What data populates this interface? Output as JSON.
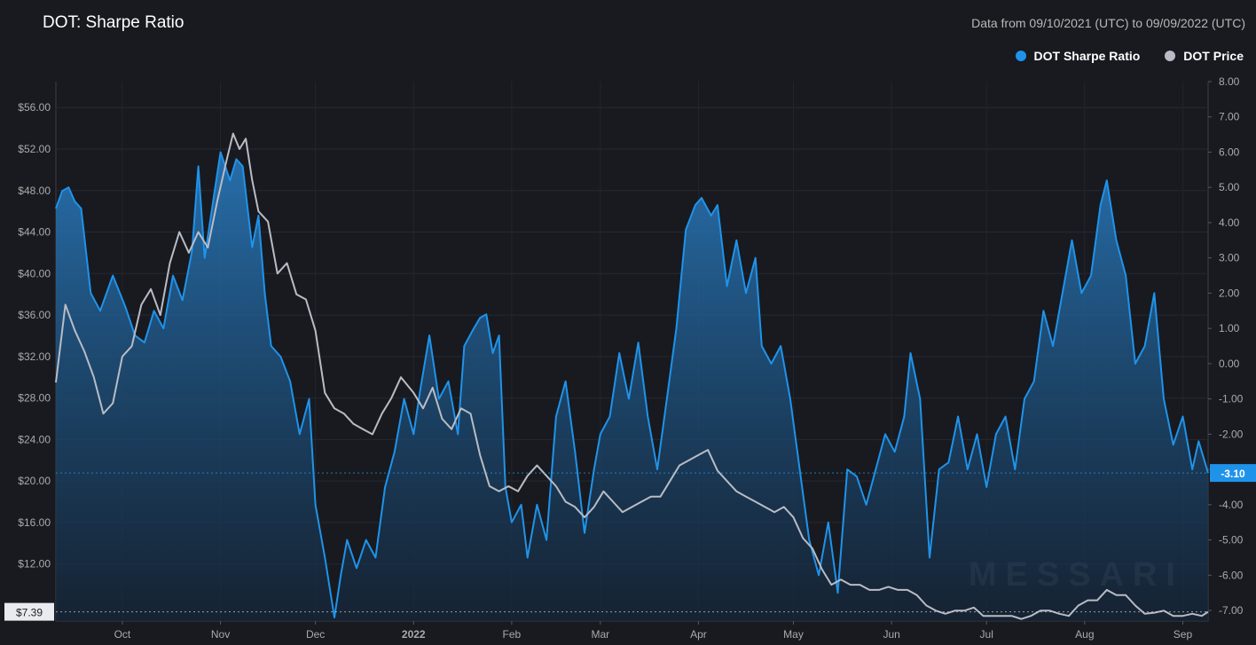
{
  "header": {
    "title": "DOT: Sharpe Ratio",
    "date_range": "Data from 09/10/2021 (UTC) to 09/09/2022 (UTC)"
  },
  "legend": [
    {
      "label": "DOT Sharpe Ratio",
      "color": "#1f93ea"
    },
    {
      "label": "DOT Price",
      "color": "#b9bcc4"
    }
  ],
  "watermark": "MESSARI",
  "markers": {
    "sharpe_last": "-3.10",
    "price_last": "$7.39"
  },
  "chart_data": {
    "type": "line",
    "x_tick_labels": [
      "Oct",
      "Nov",
      "Dec",
      "2022",
      "Feb",
      "Mar",
      "Apr",
      "May",
      "Jun",
      "Jul",
      "Aug",
      "Sep"
    ],
    "y_left": {
      "label": "DOT Price",
      "ticks": [
        "$56.00",
        "$52.00",
        "$48.00",
        "$44.00",
        "$40.00",
        "$36.00",
        "$32.00",
        "$28.00",
        "$24.00",
        "$20.00",
        "$16.00",
        "$12.00"
      ],
      "range": [
        6.5,
        58.5
      ]
    },
    "y_right": {
      "label": "DOT Sharpe Ratio",
      "ticks": [
        "8.00",
        "7.00",
        "6.00",
        "5.00",
        "4.00",
        "3.00",
        "2.00",
        "1.00",
        "0.00",
        "-1.00",
        "-2.00",
        "-3.00",
        "-4.00",
        "-5.00",
        "-6.00",
        "-7.00"
      ],
      "range": [
        -7.3,
        8.0
      ]
    },
    "grid": true,
    "legend_position": "top-right",
    "series": [
      {
        "name": "DOT Sharpe Ratio",
        "color": "#1f93ea",
        "area": true,
        "points": [
          [
            "2021-09-10",
            4.4
          ],
          [
            "2021-09-12",
            4.9
          ],
          [
            "2021-09-14",
            5.0
          ],
          [
            "2021-09-16",
            4.6
          ],
          [
            "2021-09-18",
            4.4
          ],
          [
            "2021-09-21",
            2.0
          ],
          [
            "2021-09-24",
            1.5
          ],
          [
            "2021-09-28",
            2.5
          ],
          [
            "2021-10-02",
            1.6
          ],
          [
            "2021-10-05",
            0.8
          ],
          [
            "2021-10-08",
            0.6
          ],
          [
            "2021-10-11",
            1.5
          ],
          [
            "2021-10-14",
            1.0
          ],
          [
            "2021-10-17",
            2.5
          ],
          [
            "2021-10-20",
            1.8
          ],
          [
            "2021-10-23",
            3.2
          ],
          [
            "2021-10-25",
            5.6
          ],
          [
            "2021-10-27",
            3.0
          ],
          [
            "2021-10-30",
            4.8
          ],
          [
            "2021-11-01",
            6.0
          ],
          [
            "2021-11-04",
            5.2
          ],
          [
            "2021-11-06",
            5.8
          ],
          [
            "2021-11-08",
            5.6
          ],
          [
            "2021-11-11",
            3.3
          ],
          [
            "2021-11-13",
            4.2
          ],
          [
            "2021-11-15",
            2.0
          ],
          [
            "2021-11-17",
            0.5
          ],
          [
            "2021-11-20",
            0.2
          ],
          [
            "2021-11-23",
            -0.5
          ],
          [
            "2021-11-26",
            -2.0
          ],
          [
            "2021-11-29",
            -1.0
          ],
          [
            "2021-12-01",
            -4.0
          ],
          [
            "2021-12-04",
            -5.5
          ],
          [
            "2021-12-07",
            -7.2
          ],
          [
            "2021-12-09",
            -6.0
          ],
          [
            "2021-12-11",
            -5.0
          ],
          [
            "2021-12-14",
            -5.8
          ],
          [
            "2021-12-17",
            -5.0
          ],
          [
            "2021-12-20",
            -5.5
          ],
          [
            "2021-12-23",
            -3.5
          ],
          [
            "2021-12-26",
            -2.5
          ],
          [
            "2021-12-29",
            -1.0
          ],
          [
            "2022-01-01",
            -2.0
          ],
          [
            "2022-01-03",
            -0.8
          ],
          [
            "2022-01-06",
            0.8
          ],
          [
            "2022-01-09",
            -1.0
          ],
          [
            "2022-01-12",
            -0.5
          ],
          [
            "2022-01-15",
            -2.0
          ],
          [
            "2022-01-17",
            0.5
          ],
          [
            "2022-01-20",
            1.0
          ],
          [
            "2022-01-22",
            1.3
          ],
          [
            "2022-01-24",
            1.4
          ],
          [
            "2022-01-26",
            0.3
          ],
          [
            "2022-01-28",
            0.8
          ],
          [
            "2022-01-30",
            -3.5
          ],
          [
            "2022-02-01",
            -4.5
          ],
          [
            "2022-02-04",
            -4.0
          ],
          [
            "2022-02-06",
            -5.5
          ],
          [
            "2022-02-09",
            -4.0
          ],
          [
            "2022-02-12",
            -5.0
          ],
          [
            "2022-02-15",
            -1.5
          ],
          [
            "2022-02-18",
            -0.5
          ],
          [
            "2022-02-21",
            -2.5
          ],
          [
            "2022-02-24",
            -4.8
          ],
          [
            "2022-02-27",
            -3.0
          ],
          [
            "2022-03-01",
            -2.0
          ],
          [
            "2022-03-04",
            -1.5
          ],
          [
            "2022-03-07",
            0.3
          ],
          [
            "2022-03-10",
            -1.0
          ],
          [
            "2022-03-13",
            0.6
          ],
          [
            "2022-03-16",
            -1.5
          ],
          [
            "2022-03-19",
            -3.0
          ],
          [
            "2022-03-22",
            -1.0
          ],
          [
            "2022-03-25",
            1.0
          ],
          [
            "2022-03-28",
            3.8
          ],
          [
            "2022-03-31",
            4.5
          ],
          [
            "2022-04-02",
            4.7
          ],
          [
            "2022-04-05",
            4.2
          ],
          [
            "2022-04-07",
            4.5
          ],
          [
            "2022-04-10",
            2.2
          ],
          [
            "2022-04-13",
            3.5
          ],
          [
            "2022-04-16",
            2.0
          ],
          [
            "2022-04-19",
            3.0
          ],
          [
            "2022-04-21",
            0.5
          ],
          [
            "2022-04-24",
            0.0
          ],
          [
            "2022-04-27",
            0.5
          ],
          [
            "2022-04-30",
            -1.0
          ],
          [
            "2022-05-03",
            -3.0
          ],
          [
            "2022-05-06",
            -5.0
          ],
          [
            "2022-05-09",
            -6.0
          ],
          [
            "2022-05-12",
            -4.5
          ],
          [
            "2022-05-15",
            -6.5
          ],
          [
            "2022-05-18",
            -3.0
          ],
          [
            "2022-05-21",
            -3.2
          ],
          [
            "2022-05-24",
            -4.0
          ],
          [
            "2022-05-27",
            -3.0
          ],
          [
            "2022-05-30",
            -2.0
          ],
          [
            "2022-06-02",
            -2.5
          ],
          [
            "2022-06-05",
            -1.5
          ],
          [
            "2022-06-07",
            0.3
          ],
          [
            "2022-06-10",
            -1.0
          ],
          [
            "2022-06-13",
            -5.5
          ],
          [
            "2022-06-16",
            -3.0
          ],
          [
            "2022-06-19",
            -2.8
          ],
          [
            "2022-06-22",
            -1.5
          ],
          [
            "2022-06-25",
            -3.0
          ],
          [
            "2022-06-28",
            -2.0
          ],
          [
            "2022-07-01",
            -3.5
          ],
          [
            "2022-07-04",
            -2.0
          ],
          [
            "2022-07-07",
            -1.5
          ],
          [
            "2022-07-10",
            -3.0
          ],
          [
            "2022-07-13",
            -1.0
          ],
          [
            "2022-07-16",
            -0.5
          ],
          [
            "2022-07-19",
            1.5
          ],
          [
            "2022-07-22",
            0.5
          ],
          [
            "2022-07-25",
            2.0
          ],
          [
            "2022-07-28",
            3.5
          ],
          [
            "2022-07-31",
            2.0
          ],
          [
            "2022-08-03",
            2.5
          ],
          [
            "2022-08-06",
            4.5
          ],
          [
            "2022-08-08",
            5.2
          ],
          [
            "2022-08-11",
            3.5
          ],
          [
            "2022-08-14",
            2.5
          ],
          [
            "2022-08-17",
            0.0
          ],
          [
            "2022-08-20",
            0.5
          ],
          [
            "2022-08-23",
            2.0
          ],
          [
            "2022-08-26",
            -1.0
          ],
          [
            "2022-08-29",
            -2.3
          ],
          [
            "2022-09-01",
            -1.5
          ],
          [
            "2022-09-04",
            -3.0
          ],
          [
            "2022-09-06",
            -2.2
          ],
          [
            "2022-09-09",
            -3.1
          ]
        ]
      },
      {
        "name": "DOT Price",
        "color": "#b9bcc4",
        "area": false,
        "points": [
          [
            "2021-09-10",
            29.5
          ],
          [
            "2021-09-13",
            37.0
          ],
          [
            "2021-09-16",
            34.5
          ],
          [
            "2021-09-19",
            32.5
          ],
          [
            "2021-09-22",
            30.0
          ],
          [
            "2021-09-25",
            26.5
          ],
          [
            "2021-09-28",
            27.5
          ],
          [
            "2021-10-01",
            32.0
          ],
          [
            "2021-10-04",
            33.0
          ],
          [
            "2021-10-07",
            37.0
          ],
          [
            "2021-10-10",
            38.5
          ],
          [
            "2021-10-13",
            36.0
          ],
          [
            "2021-10-16",
            41.0
          ],
          [
            "2021-10-19",
            44.0
          ],
          [
            "2021-10-22",
            42.0
          ],
          [
            "2021-10-25",
            44.0
          ],
          [
            "2021-10-28",
            42.5
          ],
          [
            "2021-10-31",
            47.0
          ],
          [
            "2021-11-03",
            51.0
          ],
          [
            "2021-11-05",
            53.5
          ],
          [
            "2021-11-07",
            52.0
          ],
          [
            "2021-11-09",
            53.0
          ],
          [
            "2021-11-11",
            49.0
          ],
          [
            "2021-11-13",
            46.0
          ],
          [
            "2021-11-16",
            45.0
          ],
          [
            "2021-11-19",
            40.0
          ],
          [
            "2021-11-22",
            41.0
          ],
          [
            "2021-11-25",
            38.0
          ],
          [
            "2021-11-28",
            37.5
          ],
          [
            "2021-12-01",
            34.5
          ],
          [
            "2021-12-04",
            28.5
          ],
          [
            "2021-12-07",
            27.0
          ],
          [
            "2021-12-10",
            26.5
          ],
          [
            "2021-12-13",
            25.5
          ],
          [
            "2021-12-16",
            25.0
          ],
          [
            "2021-12-19",
            24.5
          ],
          [
            "2021-12-22",
            26.5
          ],
          [
            "2021-12-25",
            28.0
          ],
          [
            "2021-12-28",
            30.0
          ],
          [
            "2022-01-01",
            28.5
          ],
          [
            "2022-01-04",
            27.0
          ],
          [
            "2022-01-07",
            29.0
          ],
          [
            "2022-01-10",
            26.0
          ],
          [
            "2022-01-13",
            25.0
          ],
          [
            "2022-01-16",
            27.0
          ],
          [
            "2022-01-19",
            26.5
          ],
          [
            "2022-01-22",
            22.5
          ],
          [
            "2022-01-25",
            19.5
          ],
          [
            "2022-01-28",
            19.0
          ],
          [
            "2022-01-31",
            19.5
          ],
          [
            "2022-02-03",
            19.0
          ],
          [
            "2022-02-06",
            20.5
          ],
          [
            "2022-02-09",
            21.5
          ],
          [
            "2022-02-12",
            20.5
          ],
          [
            "2022-02-15",
            19.5
          ],
          [
            "2022-02-18",
            18.0
          ],
          [
            "2022-02-21",
            17.5
          ],
          [
            "2022-02-24",
            16.5
          ],
          [
            "2022-02-27",
            17.5
          ],
          [
            "2022-03-02",
            19.0
          ],
          [
            "2022-03-05",
            18.0
          ],
          [
            "2022-03-08",
            17.0
          ],
          [
            "2022-03-11",
            17.5
          ],
          [
            "2022-03-14",
            18.0
          ],
          [
            "2022-03-17",
            18.5
          ],
          [
            "2022-03-20",
            18.5
          ],
          [
            "2022-03-23",
            20.0
          ],
          [
            "2022-03-26",
            21.5
          ],
          [
            "2022-03-29",
            22.0
          ],
          [
            "2022-04-01",
            22.5
          ],
          [
            "2022-04-04",
            23.0
          ],
          [
            "2022-04-07",
            21.0
          ],
          [
            "2022-04-10",
            20.0
          ],
          [
            "2022-04-13",
            19.0
          ],
          [
            "2022-04-16",
            18.5
          ],
          [
            "2022-04-19",
            18.0
          ],
          [
            "2022-04-22",
            17.5
          ],
          [
            "2022-04-25",
            17.0
          ],
          [
            "2022-04-28",
            17.5
          ],
          [
            "2022-05-01",
            16.5
          ],
          [
            "2022-05-04",
            14.5
          ],
          [
            "2022-05-07",
            13.5
          ],
          [
            "2022-05-10",
            11.5
          ],
          [
            "2022-05-13",
            10.0
          ],
          [
            "2022-05-16",
            10.5
          ],
          [
            "2022-05-19",
            10.0
          ],
          [
            "2022-05-22",
            10.0
          ],
          [
            "2022-05-25",
            9.5
          ],
          [
            "2022-05-28",
            9.5
          ],
          [
            "2022-05-31",
            9.8
          ],
          [
            "2022-06-03",
            9.5
          ],
          [
            "2022-06-06",
            9.5
          ],
          [
            "2022-06-09",
            9.0
          ],
          [
            "2022-06-12",
            8.0
          ],
          [
            "2022-06-15",
            7.5
          ],
          [
            "2022-06-18",
            7.2
          ],
          [
            "2022-06-21",
            7.5
          ],
          [
            "2022-06-24",
            7.5
          ],
          [
            "2022-06-27",
            7.8
          ],
          [
            "2022-06-30",
            7.0
          ],
          [
            "2022-07-03",
            7.0
          ],
          [
            "2022-07-06",
            7.0
          ],
          [
            "2022-07-09",
            7.0
          ],
          [
            "2022-07-12",
            6.7
          ],
          [
            "2022-07-15",
            7.0
          ],
          [
            "2022-07-18",
            7.5
          ],
          [
            "2022-07-21",
            7.5
          ],
          [
            "2022-07-24",
            7.2
          ],
          [
            "2022-07-27",
            7.0
          ],
          [
            "2022-07-30",
            8.0
          ],
          [
            "2022-08-02",
            8.5
          ],
          [
            "2022-08-05",
            8.5
          ],
          [
            "2022-08-08",
            9.5
          ],
          [
            "2022-08-11",
            9.0
          ],
          [
            "2022-08-14",
            9.0
          ],
          [
            "2022-08-17",
            8.0
          ],
          [
            "2022-08-20",
            7.2
          ],
          [
            "2022-08-23",
            7.3
          ],
          [
            "2022-08-26",
            7.5
          ],
          [
            "2022-08-29",
            7.0
          ],
          [
            "2022-09-01",
            7.0
          ],
          [
            "2022-09-04",
            7.2
          ],
          [
            "2022-09-07",
            7.0
          ],
          [
            "2022-09-09",
            7.39
          ]
        ]
      }
    ]
  }
}
